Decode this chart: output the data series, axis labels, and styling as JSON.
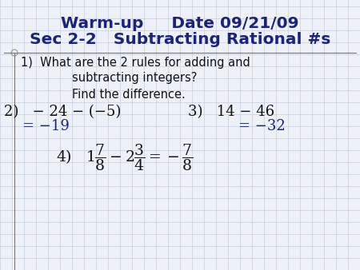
{
  "title_line1": "Warm-up     Date 09/21/09",
  "title_line2": "Sec 2-2   Subtracting Rational #s",
  "title_color": "#1a237e",
  "bg_color": "#eef2f8",
  "grid_color": "#c5cfe0",
  "body_color": "#111111",
  "answer_color": "#1a237e",
  "line1": "1)  What are the 2 rules for adding and",
  "line2": "subtracting integers?",
  "line3": "Find the difference.",
  "prob2_q": "2)   − 24 − (−5)",
  "prob2_a": "= −19",
  "prob3_q": "3)   14 − 46",
  "prob3_a": "= −32"
}
